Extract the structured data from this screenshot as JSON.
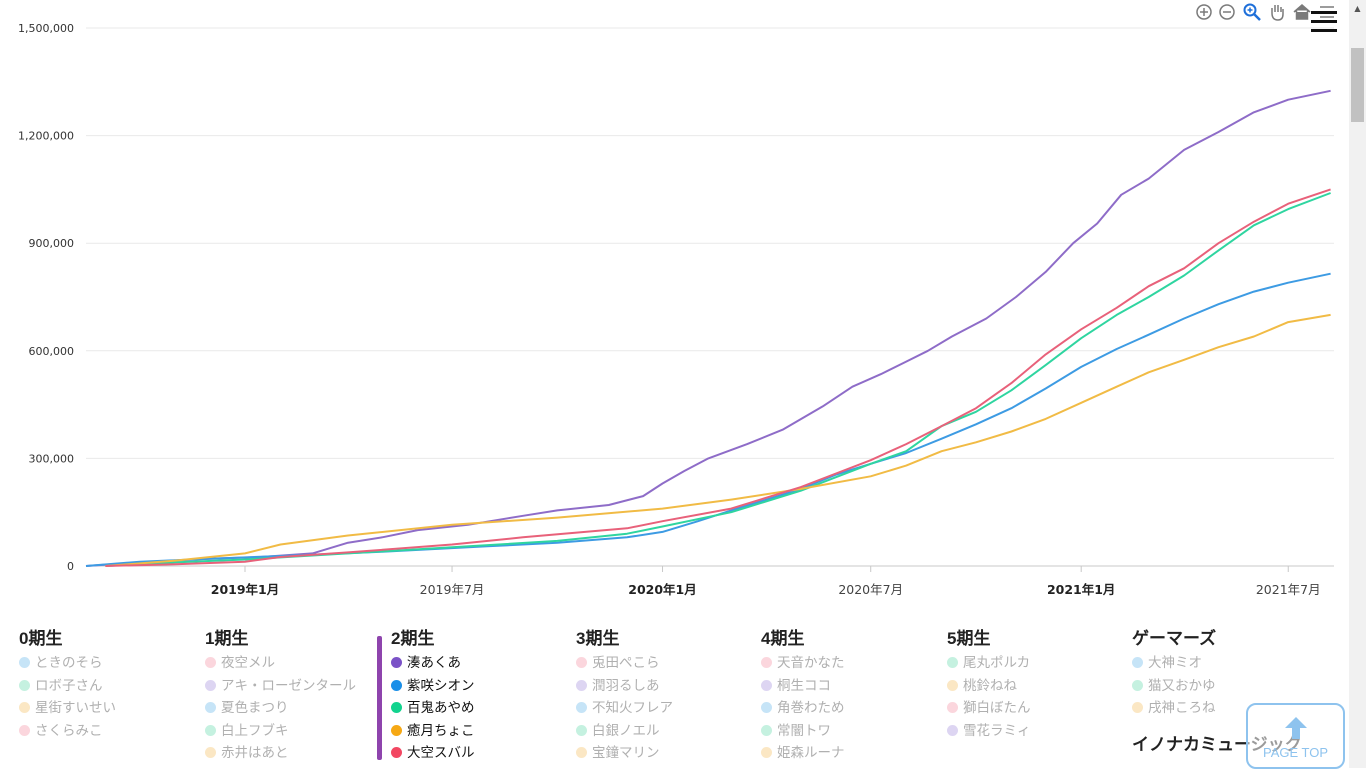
{
  "toolbar": {
    "icons": [
      "zoom-in-icon",
      "zoom-out-icon",
      "magnify-icon",
      "pan-hand-icon",
      "home-icon",
      "menu-icon"
    ]
  },
  "chart_data": {
    "type": "line",
    "ylim": [
      0,
      1500000
    ],
    "yticks": [
      0,
      300000,
      600000,
      900000,
      1200000,
      1500000
    ],
    "ytick_labels": [
      "0",
      "300,000",
      "600,000",
      "900,000",
      "1,200,000",
      "1,500,000"
    ],
    "xlim": [
      "2018-08-15",
      "2021-08-10"
    ],
    "xticks": [
      {
        "date": "2019-01-01",
        "label": "2019年1月",
        "bold": true
      },
      {
        "date": "2019-07-01",
        "label": "2019年7月",
        "bold": false
      },
      {
        "date": "2020-01-01",
        "label": "2020年1月",
        "bold": true
      },
      {
        "date": "2020-07-01",
        "label": "2020年7月",
        "bold": false
      },
      {
        "date": "2021-01-01",
        "label": "2021年1月",
        "bold": true
      },
      {
        "date": "2021-07-01",
        "label": "2021年7月",
        "bold": false
      }
    ],
    "grid": true,
    "series": [
      {
        "name": "湊あくあ",
        "color": "#8e6cc8",
        "points": [
          [
            "2018-08-15",
            0
          ],
          [
            "2018-10-01",
            10000
          ],
          [
            "2018-12-01",
            20000
          ],
          [
            "2019-01-15",
            25000
          ],
          [
            "2019-03-01",
            35000
          ],
          [
            "2019-04-01",
            65000
          ],
          [
            "2019-05-01",
            80000
          ],
          [
            "2019-06-01",
            100000
          ],
          [
            "2019-07-15",
            115000
          ],
          [
            "2019-09-01",
            140000
          ],
          [
            "2019-10-01",
            155000
          ],
          [
            "2019-11-15",
            170000
          ],
          [
            "2019-12-15",
            195000
          ],
          [
            "2020-01-01",
            230000
          ],
          [
            "2020-01-20",
            265000
          ],
          [
            "2020-02-10",
            300000
          ],
          [
            "2020-03-15",
            340000
          ],
          [
            "2020-04-15",
            380000
          ],
          [
            "2020-05-20",
            445000
          ],
          [
            "2020-06-15",
            500000
          ],
          [
            "2020-07-10",
            535000
          ],
          [
            "2020-08-01",
            570000
          ],
          [
            "2020-08-20",
            600000
          ],
          [
            "2020-09-10",
            640000
          ],
          [
            "2020-10-10",
            690000
          ],
          [
            "2020-11-05",
            750000
          ],
          [
            "2020-12-01",
            820000
          ],
          [
            "2020-12-25",
            900000
          ],
          [
            "2021-01-15",
            955000
          ],
          [
            "2021-02-05",
            1035000
          ],
          [
            "2021-03-01",
            1080000
          ],
          [
            "2021-04-01",
            1160000
          ],
          [
            "2021-05-01",
            1210000
          ],
          [
            "2021-06-01",
            1265000
          ],
          [
            "2021-07-01",
            1300000
          ],
          [
            "2021-08-07",
            1325000
          ]
        ]
      },
      {
        "name": "紫咲シオン",
        "color": "#3d9be3",
        "points": [
          [
            "2018-08-15",
            0
          ],
          [
            "2018-10-01",
            12000
          ],
          [
            "2018-12-01",
            20000
          ],
          [
            "2019-02-01",
            28000
          ],
          [
            "2019-05-01",
            40000
          ],
          [
            "2019-08-01",
            55000
          ],
          [
            "2019-10-01",
            65000
          ],
          [
            "2019-12-01",
            80000
          ],
          [
            "2020-01-01",
            95000
          ],
          [
            "2020-02-01",
            125000
          ],
          [
            "2020-03-01",
            155000
          ],
          [
            "2020-04-01",
            185000
          ],
          [
            "2020-05-01",
            215000
          ],
          [
            "2020-06-01",
            255000
          ],
          [
            "2020-07-01",
            285000
          ],
          [
            "2020-08-01",
            315000
          ],
          [
            "2020-09-01",
            355000
          ],
          [
            "2020-10-01",
            395000
          ],
          [
            "2020-11-01",
            440000
          ],
          [
            "2020-12-01",
            495000
          ],
          [
            "2021-01-01",
            555000
          ],
          [
            "2021-02-01",
            605000
          ],
          [
            "2021-03-01",
            645000
          ],
          [
            "2021-04-01",
            690000
          ],
          [
            "2021-05-01",
            730000
          ],
          [
            "2021-06-01",
            765000
          ],
          [
            "2021-07-01",
            790000
          ],
          [
            "2021-08-07",
            815000
          ]
        ]
      },
      {
        "name": "百鬼あやめ",
        "color": "#2fd5a0",
        "points": [
          [
            "2018-09-01",
            0
          ],
          [
            "2018-11-01",
            10000
          ],
          [
            "2019-01-01",
            18000
          ],
          [
            "2019-04-01",
            35000
          ],
          [
            "2019-07-01",
            52000
          ],
          [
            "2019-10-01",
            70000
          ],
          [
            "2019-12-01",
            90000
          ],
          [
            "2020-01-01",
            110000
          ],
          [
            "2020-03-01",
            150000
          ],
          [
            "2020-05-01",
            210000
          ],
          [
            "2020-07-01",
            285000
          ],
          [
            "2020-08-01",
            320000
          ],
          [
            "2020-09-01",
            390000
          ],
          [
            "2020-10-01",
            430000
          ],
          [
            "2020-11-01",
            490000
          ],
          [
            "2020-12-01",
            560000
          ],
          [
            "2021-01-01",
            635000
          ],
          [
            "2021-02-01",
            700000
          ],
          [
            "2021-03-01",
            750000
          ],
          [
            "2021-04-01",
            810000
          ],
          [
            "2021-05-01",
            880000
          ],
          [
            "2021-06-01",
            950000
          ],
          [
            "2021-07-01",
            995000
          ],
          [
            "2021-08-07",
            1040000
          ]
        ]
      },
      {
        "name": "癒月ちょこ",
        "color": "#f1bb45",
        "points": [
          [
            "2018-09-01",
            0
          ],
          [
            "2018-11-01",
            15000
          ],
          [
            "2019-01-01",
            35000
          ],
          [
            "2019-02-01",
            60000
          ],
          [
            "2019-04-01",
            85000
          ],
          [
            "2019-07-01",
            115000
          ],
          [
            "2019-10-01",
            135000
          ],
          [
            "2020-01-01",
            160000
          ],
          [
            "2020-03-01",
            185000
          ],
          [
            "2020-05-01",
            215000
          ],
          [
            "2020-07-01",
            250000
          ],
          [
            "2020-08-01",
            280000
          ],
          [
            "2020-09-01",
            320000
          ],
          [
            "2020-10-01",
            345000
          ],
          [
            "2020-11-01",
            375000
          ],
          [
            "2020-12-01",
            410000
          ],
          [
            "2021-01-01",
            455000
          ],
          [
            "2021-02-01",
            500000
          ],
          [
            "2021-03-01",
            540000
          ],
          [
            "2021-04-01",
            575000
          ],
          [
            "2021-05-01",
            610000
          ],
          [
            "2021-06-01",
            640000
          ],
          [
            "2021-07-01",
            680000
          ],
          [
            "2021-08-07",
            700000
          ]
        ]
      },
      {
        "name": "大空スバル",
        "color": "#e8617a",
        "points": [
          [
            "2018-09-01",
            0
          ],
          [
            "2018-11-01",
            5000
          ],
          [
            "2019-01-01",
            12000
          ],
          [
            "2019-02-01",
            25000
          ],
          [
            "2019-04-01",
            38000
          ],
          [
            "2019-07-01",
            60000
          ],
          [
            "2019-09-01",
            80000
          ],
          [
            "2019-12-01",
            105000
          ],
          [
            "2020-01-01",
            125000
          ],
          [
            "2020-03-01",
            160000
          ],
          [
            "2020-05-01",
            220000
          ],
          [
            "2020-07-01",
            295000
          ],
          [
            "2020-08-01",
            340000
          ],
          [
            "2020-09-01",
            390000
          ],
          [
            "2020-10-01",
            440000
          ],
          [
            "2020-11-01",
            510000
          ],
          [
            "2020-12-01",
            590000
          ],
          [
            "2021-01-01",
            660000
          ],
          [
            "2021-02-01",
            720000
          ],
          [
            "2021-03-01",
            780000
          ],
          [
            "2021-04-01",
            830000
          ],
          [
            "2021-05-01",
            900000
          ],
          [
            "2021-06-01",
            960000
          ],
          [
            "2021-07-01",
            1010000
          ],
          [
            "2021-08-07",
            1050000
          ]
        ]
      }
    ]
  },
  "legend": [
    {
      "title": "0期生",
      "members": [
        {
          "name": "ときのそら",
          "color": "#c6e4f7",
          "active": false
        },
        {
          "name": "ロボ子さん",
          "color": "#c5f1e0",
          "active": false
        },
        {
          "name": "星街すいせい",
          "color": "#fbe7c4",
          "active": false
        },
        {
          "name": "さくらみこ",
          "color": "#fbd6dd",
          "active": false
        }
      ]
    },
    {
      "title": "1期生",
      "members": [
        {
          "name": "夜空メル",
          "color": "#fbd6dd",
          "active": false
        },
        {
          "name": "アキ・ローゼンタール",
          "color": "#ddd5f2",
          "active": false
        },
        {
          "name": "夏色まつり",
          "color": "#c6e4f7",
          "active": false
        },
        {
          "name": "白上フブキ",
          "color": "#c5f1e0",
          "active": false
        },
        {
          "name": "赤井はあと",
          "color": "#fbe7c4",
          "active": false
        }
      ]
    },
    {
      "title": "2期生",
      "members": [
        {
          "name": "湊あくあ",
          "color": "#7b52c7",
          "active": true
        },
        {
          "name": "紫咲シオン",
          "color": "#1a8fe8",
          "active": true
        },
        {
          "name": "百鬼あやめ",
          "color": "#12d38e",
          "active": true
        },
        {
          "name": "癒月ちょこ",
          "color": "#f6a814",
          "active": true
        },
        {
          "name": "大空スバル",
          "color": "#f24762",
          "active": true
        }
      ]
    },
    {
      "title": "3期生",
      "members": [
        {
          "name": "兎田ぺこら",
          "color": "#fbd6dd",
          "active": false
        },
        {
          "name": "潤羽るしあ",
          "color": "#ddd5f2",
          "active": false
        },
        {
          "name": "不知火フレア",
          "color": "#c6e4f7",
          "active": false
        },
        {
          "name": "白銀ノエル",
          "color": "#c5f1e0",
          "active": false
        },
        {
          "name": "宝鐘マリン",
          "color": "#fbe7c4",
          "active": false
        }
      ]
    },
    {
      "title": "4期生",
      "members": [
        {
          "name": "天音かなた",
          "color": "#fbd6dd",
          "active": false
        },
        {
          "name": "桐生ココ",
          "color": "#ddd5f2",
          "active": false
        },
        {
          "name": "角巻わため",
          "color": "#c6e4f7",
          "active": false
        },
        {
          "name": "常闇トワ",
          "color": "#c5f1e0",
          "active": false
        },
        {
          "name": "姫森ルーナ",
          "color": "#fbe7c4",
          "active": false
        }
      ]
    },
    {
      "title": "5期生",
      "members": [
        {
          "name": "尾丸ポルカ",
          "color": "#c5f1e0",
          "active": false
        },
        {
          "name": "桃鈴ねね",
          "color": "#fbe7c4",
          "active": false
        },
        {
          "name": "獅白ぼたん",
          "color": "#fbd6dd",
          "active": false
        },
        {
          "name": "雪花ラミィ",
          "color": "#ddd5f2",
          "active": false
        }
      ]
    },
    {
      "title": "ゲーマーズ",
      "members": [
        {
          "name": "大神ミオ",
          "color": "#c6e4f7",
          "active": false
        },
        {
          "name": "猫又おかゆ",
          "color": "#c5f1e0",
          "active": false
        },
        {
          "name": "戌神ころね",
          "color": "#fbe7c4",
          "active": false
        }
      ]
    }
  ],
  "legend_extra_title": "イノナカミュージック",
  "page_top": {
    "label": "PAGE TOP"
  }
}
